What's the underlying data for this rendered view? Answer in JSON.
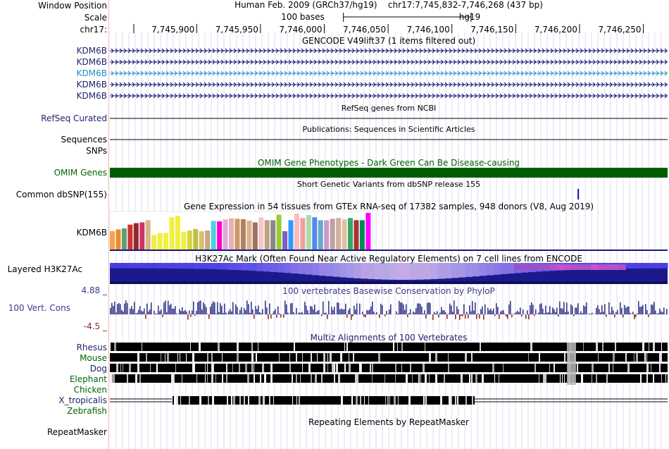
{
  "labels": {
    "window_position": "Window Position",
    "scale": "Scale",
    "chrom": "chr17:",
    "kdm6b": [
      "KDM6B",
      "KDM6B",
      "KDM6B",
      "KDM6B",
      "KDM6B"
    ],
    "refseq": "RefSeq Curated",
    "sequences": "Sequences",
    "snps": "SNPs",
    "omim": "OMIM Genes",
    "dbsnp": "Common dbSNP(155)",
    "gtex_gene": "KDM6B",
    "h3k27ac": "Layered H3K27Ac",
    "cons_max": "4.88 _",
    "cons_label": "100 Vert. Cons",
    "cons_min": "-4.5 _",
    "species": [
      "Rhesus",
      "Mouse",
      "Dog",
      "Elephant",
      "Chicken",
      "X_tropicalis",
      "Zebrafish"
    ],
    "repeatmasker": "RepeatMasker"
  },
  "header": {
    "assembly": "Human Feb. 2009 (GRCh37/hg19)",
    "position": "chr17:7,745,832-7,746,268 (437 bp)",
    "scale_text": "100 bases",
    "scale_db": "hg19",
    "ticks": [
      "7,745,900",
      "7,745,950",
      "7,746,000",
      "7,746,050",
      "7,746,100",
      "7,746,150",
      "7,746,200",
      "7,746,250"
    ]
  },
  "titles": {
    "gencode": "GENCODE V49lift37 (1 items filtered out)",
    "refseq": "RefSeq genes from NCBI",
    "publications": "Publications: Sequences in Scientific Articles",
    "omim": "OMIM Gene Phenotypes - Dark Green Can Be Disease-causing",
    "dbsnp": "Short Genetic Variants from dbSNP release 155",
    "gtex": "Gene Expression in 54 tissues from GTEx RNA-seq of 17382 samples, 948 donors (V8, Aug 2019)",
    "h3k27ac": "H3K27Ac Mark (Often Found Near Active Regulatory Elements) on 7 cell lines from ENCODE",
    "cons": "100 vertebrates Basewise Conservation by PhyloP",
    "multiz": "Multiz Alignments of 100 Vertebrates",
    "repeat": "Repeating Elements by RepeatMasker"
  },
  "colors": {
    "gene_blue": "#0c0c78",
    "gene_light": "#1f8fc4",
    "omim_green": "#005e00",
    "cons_blue": "#3b3b8c",
    "cons_neg": "#8b2a2a",
    "h3k27ac_dark": "#1a1a8a",
    "dbsnp": "#1010a0"
  },
  "gtex_tissue_colors": [
    "#f6a14c",
    "#ed8c2e",
    "#5e9e74",
    "#cc3333",
    "#8e2a2a",
    "#cc3366",
    "#d9b38c",
    "#efef44",
    "#efef44",
    "#efef44",
    "#efef44",
    "#efef44",
    "#efef44",
    "#d4d444",
    "#c0c040",
    "#d6c070",
    "#c8a880",
    "#4dd0e0",
    "#ff00cc",
    "#ddaadd",
    "#e8b0b0",
    "#cc9966",
    "#b08060",
    "#d9b38c",
    "#a07060",
    "#f0c8c8",
    "#c0a080",
    "#888888",
    "#99cc33",
    "#8060c0",
    "#3399ff",
    "#ffbbbb",
    "#f0a0a0",
    "#aaddaa",
    "#5588ee",
    "#66aacc",
    "#cc99cc",
    "#c0a0a0",
    "#d0b0a0",
    "#e0c0a0",
    "#33aa66",
    "#aa3333",
    "#008855",
    "#ff00ff"
  ],
  "gtex_values": [
    0.5,
    0.55,
    0.58,
    0.68,
    0.72,
    0.74,
    0.8,
    0.4,
    0.45,
    0.45,
    0.88,
    0.92,
    0.48,
    0.52,
    0.56,
    0.5,
    0.52,
    0.78,
    0.77,
    0.82,
    0.85,
    0.84,
    0.83,
    0.79,
    0.74,
    0.88,
    0.8,
    0.8,
    0.95,
    0.5,
    0.8,
    0.98,
    0.86,
    0.94,
    0.88,
    0.8,
    0.8,
    0.84,
    0.86,
    0.82,
    0.86,
    0.8,
    0.8,
    1.0
  ],
  "dbsnp_positions_bp": [
    7746199
  ]
}
